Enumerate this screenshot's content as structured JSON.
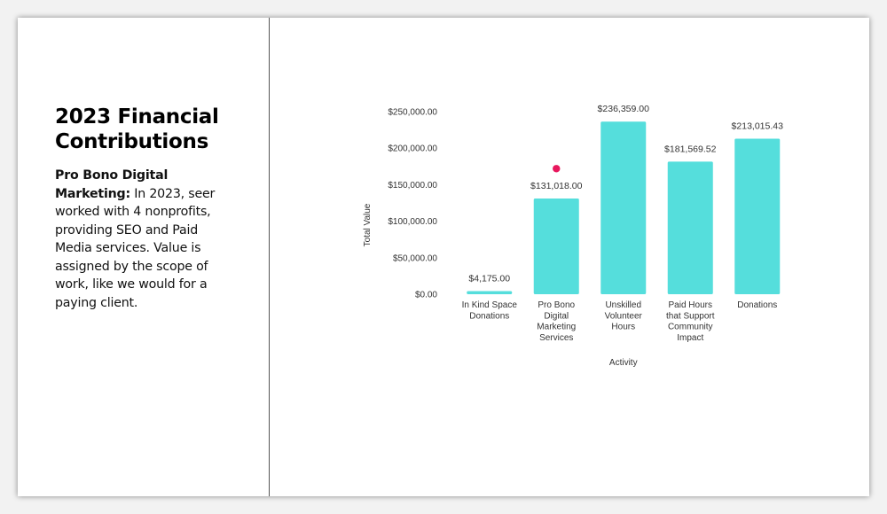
{
  "slide": {
    "title": "2023 Financial Contributions",
    "body_bold": "Pro Bono Digital Marketing:",
    "body_text": " In 2023, seer worked with 4 nonprofits, providing SEO and Paid Media services. Value is assigned by the scope of work, like we would for a paying client."
  },
  "colors": {
    "bar": "#55DEDC",
    "marker": "#E8175D"
  },
  "chart_data": {
    "type": "bar",
    "title": "",
    "xlabel": "Activity",
    "ylabel": "Total Value",
    "ylim": [
      0,
      250000
    ],
    "yticks": [
      0,
      50000,
      100000,
      150000,
      200000,
      250000
    ],
    "ytick_labels": [
      "$0.00",
      "$50,000.00",
      "$100,000.00",
      "$150,000.00",
      "$200,000.00",
      "$250,000.00"
    ],
    "grid": false,
    "categories": [
      [
        "In Kind Space",
        "Donations"
      ],
      [
        "Pro Bono",
        "Digital",
        "Marketing",
        "Services"
      ],
      [
        "Unskilled",
        "Volunteer",
        "Hours"
      ],
      [
        "Paid Hours",
        "that Support",
        "Community",
        "Impact"
      ],
      [
        "Donations"
      ]
    ],
    "values": [
      4175,
      131018,
      236359,
      181569.52,
      213015.43
    ],
    "data_labels": [
      "$4,175.00",
      "$131,018.00",
      "$236,359.00",
      "$181,569.52",
      "$213,015.43"
    ],
    "highlight_marker": {
      "category_index": 1,
      "value": 172000
    }
  }
}
